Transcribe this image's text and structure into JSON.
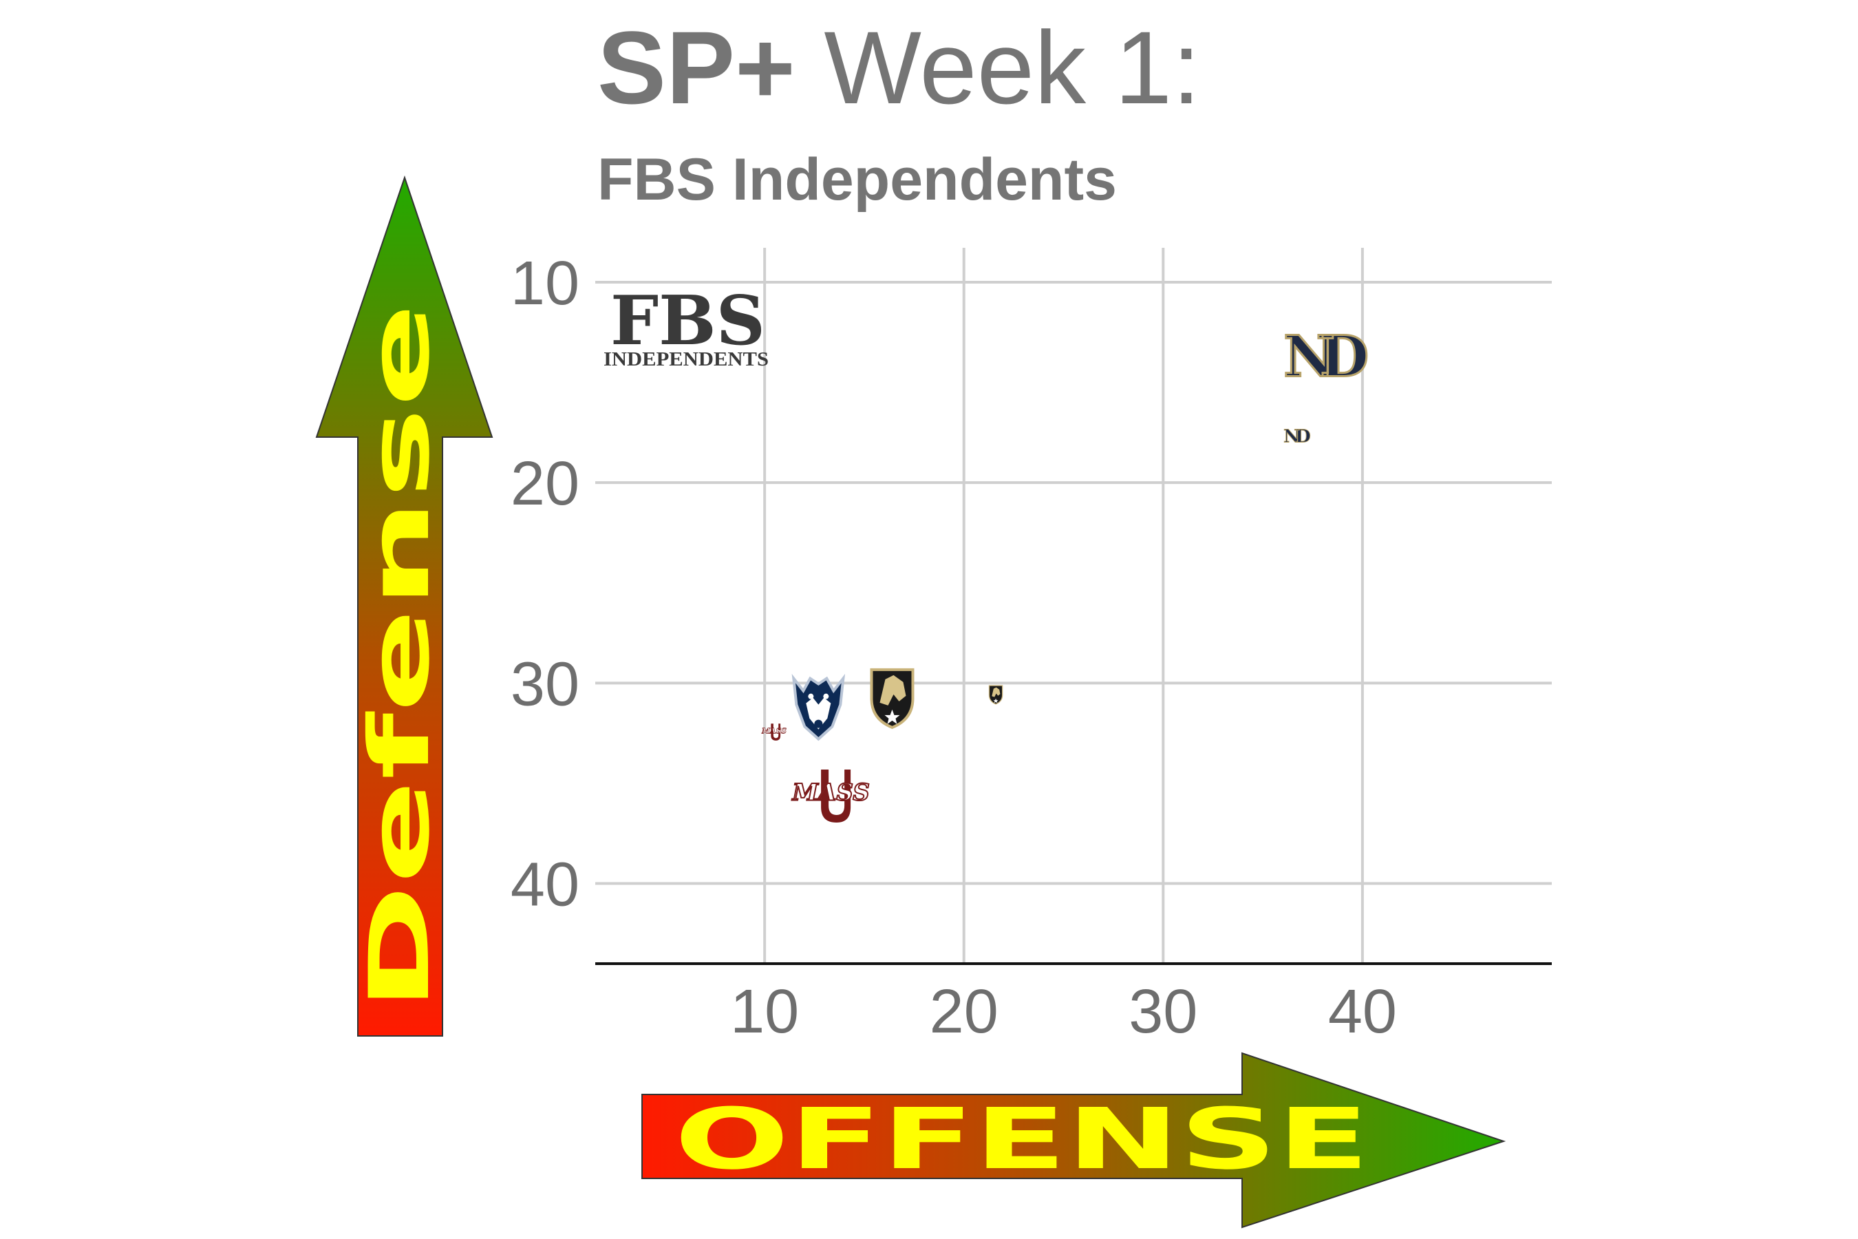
{
  "title": {
    "bold": "SP+",
    "regular": " Week 1:"
  },
  "subtitle": "FBS Independents",
  "watermark": {
    "line1": "FBS",
    "line2": "INDEPENDENTS"
  },
  "axis_arrows": {
    "x": "OFFENSE",
    "y": "Defense"
  },
  "colors": {
    "arrow_start": "#ff1a00",
    "arrow_end": "#22aa00",
    "arrow_text": "#ffff00",
    "grid": "#cfcfcf",
    "text": "#757575"
  },
  "chart_data": {
    "type": "scatter",
    "title": "SP+ Week 1:",
    "subtitle": "FBS Independents",
    "xlabel": "OFFENSE",
    "ylabel": "Defense",
    "xlim": [
      1.5,
      49.5
    ],
    "ylim": [
      10,
      44
    ],
    "y_reversed": true,
    "grid": true,
    "x_ticks": [
      10,
      20,
      30,
      40
    ],
    "y_ticks": [
      10,
      20,
      30,
      40
    ],
    "points": [
      {
        "team": "Notre Dame",
        "x": 37.8,
        "y": 13.8,
        "size": "large",
        "logo": "nd-monogram-icon"
      },
      {
        "team": "Notre Dame",
        "x": 36.6,
        "y": 17.7,
        "size": "small",
        "logo": "nd-monogram-icon"
      },
      {
        "team": "UConn",
        "x": 12.7,
        "y": 30.8,
        "size": "large",
        "logo": "husky-icon"
      },
      {
        "team": "Army",
        "x": 16.4,
        "y": 30.5,
        "size": "large",
        "logo": "army-knight-icon"
      },
      {
        "team": "Army",
        "x": 21.6,
        "y": 30.5,
        "size": "small",
        "logo": "army-knight-icon"
      },
      {
        "team": "UMass",
        "x": 13.4,
        "y": 35.5,
        "size": "large",
        "logo": "umass-icon"
      },
      {
        "team": "UMass",
        "x": 10.5,
        "y": 32.4,
        "size": "small",
        "logo": "umass-icon"
      }
    ]
  }
}
